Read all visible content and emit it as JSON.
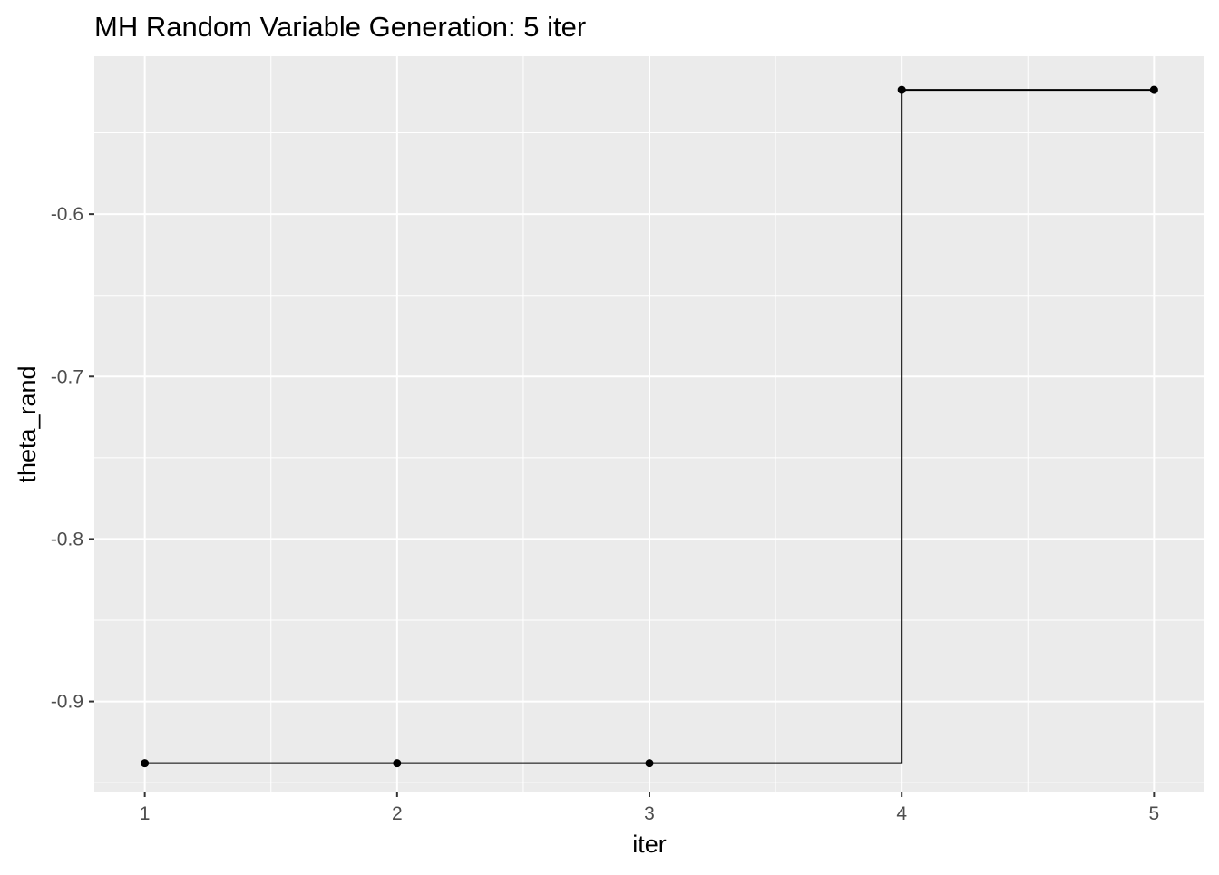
{
  "chart_data": {
    "type": "line",
    "title": "MH Random Variable Generation: 5 iter",
    "xlabel": "iter",
    "ylabel": "theta_rand",
    "step": "hv",
    "points": true,
    "x": [
      1,
      2,
      3,
      4,
      5
    ],
    "series": [
      {
        "values": [
          -0.938,
          -0.938,
          -0.938,
          -0.5235,
          -0.5235
        ],
        "color": "#000000"
      }
    ],
    "xlim": [
      0.8,
      5.2
    ],
    "ylim": [
      -0.9555,
      -0.5028
    ],
    "x_ticks": [
      1,
      2,
      3,
      4,
      5
    ],
    "x_tick_labels": [
      "1",
      "2",
      "3",
      "4",
      "5"
    ],
    "y_ticks": [
      -0.9,
      -0.8,
      -0.7,
      -0.6
    ],
    "y_tick_labels": [
      "-0.9",
      "-0.8",
      "-0.7",
      "-0.6"
    ],
    "grid": true,
    "panel_color": "#ebebeb",
    "grid_color": "#ffffff",
    "tick_color": "#333333",
    "tick_label_color": "#4d4d4d",
    "legend": "none"
  }
}
